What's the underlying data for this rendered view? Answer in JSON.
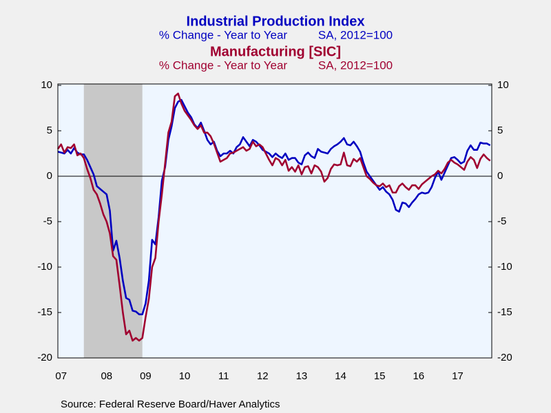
{
  "chart_data": {
    "type": "line",
    "source": "Source:  Federal Reserve Board/Haver Analytics",
    "categories": [
      null,
      "07",
      null,
      null,
      null,
      null,
      null,
      null,
      null,
      null,
      null,
      null,
      null,
      null,
      null,
      "08",
      null,
      null,
      null,
      null,
      null,
      null,
      null,
      null,
      null,
      null,
      null,
      "09",
      null,
      null,
      null,
      null,
      null,
      null,
      null,
      null,
      null,
      null,
      null,
      "10",
      null,
      null,
      null,
      null,
      null,
      null,
      null,
      null,
      null,
      null,
      null,
      "11",
      null,
      null,
      null,
      null,
      null,
      null,
      null,
      null,
      null,
      null,
      null,
      "12",
      null,
      null,
      null,
      null,
      null,
      null,
      null,
      null,
      null,
      null,
      null,
      "13",
      null,
      null,
      null,
      null,
      null,
      null,
      null,
      null,
      null,
      null,
      null,
      "14",
      null,
      null,
      null,
      null,
      null,
      null,
      null,
      null,
      null,
      null,
      null,
      "15",
      null,
      null,
      null,
      null,
      null,
      null,
      null,
      null,
      null,
      null,
      null,
      "16",
      null,
      null,
      null,
      null,
      null,
      null,
      null,
      null,
      null,
      null,
      null,
      "17",
      null,
      null,
      null,
      null,
      null,
      null,
      null,
      null,
      null,
      null
    ],
    "shaded_range": [
      8,
      26
    ],
    "ylim": [
      -20,
      10
    ],
    "yticks": [
      -20,
      -15,
      -10,
      -5,
      0,
      5,
      10
    ],
    "zero_line": true,
    "series": [
      {
        "name": "Industrial Production Index",
        "notes": [
          "% Change - Year to Year",
          "SA, 2012=100"
        ],
        "color": "#0000c0",
        "values": [
          2.7,
          2.6,
          2.5,
          2.9,
          2.5,
          3.1,
          2.6,
          2.4,
          2.4,
          1.8,
          1.0,
          0.2,
          -1.1,
          -1.4,
          -1.7,
          -2.0,
          -3.8,
          -8.2,
          -7.1,
          -9.0,
          -11.5,
          -13.4,
          -13.6,
          -14.8,
          -14.9,
          -15.2,
          -15.2,
          -14.0,
          -11.5,
          -7.0,
          -7.5,
          -4.5,
          -0.5,
          1.0,
          4.0,
          5.5,
          7.5,
          8.2,
          8.4,
          7.7,
          7.0,
          6.5,
          5.7,
          5.3,
          5.9,
          5.0,
          4.0,
          3.5,
          3.8,
          2.8,
          2.2,
          2.5,
          2.5,
          2.8,
          2.5,
          3.2,
          3.5,
          4.3,
          3.8,
          3.3,
          4.0,
          3.8,
          3.4,
          2.9,
          2.7,
          2.5,
          2.1,
          2.5,
          2.2,
          2.0,
          2.5,
          1.8,
          2.0,
          2.0,
          1.5,
          1.3,
          2.3,
          2.6,
          2.2,
          2.0,
          3.0,
          2.7,
          2.6,
          2.5,
          3.0,
          3.3,
          3.5,
          3.8,
          4.2,
          3.5,
          3.4,
          3.8,
          3.3,
          2.7,
          1.5,
          0.5,
          0.0,
          -0.5,
          -1.0,
          -1.5,
          -1.2,
          -1.7,
          -2.0,
          -2.6,
          -3.7,
          -3.9,
          -2.9,
          -3.0,
          -3.4,
          -2.9,
          -2.5,
          -2.0,
          -1.8,
          -1.9,
          -1.8,
          -1.2,
          -0.2,
          0.5,
          -0.4,
          0.4,
          1.2,
          2.0,
          2.1,
          1.8,
          1.4,
          1.6,
          2.8,
          3.4,
          2.9,
          2.9,
          3.7,
          3.6,
          3.6,
          3.4
        ]
      },
      {
        "name": "Manufacturing [SIC]",
        "notes": [
          "% Change - Year to Year",
          "SA, 2012=100"
        ],
        "color": "#a00030",
        "values": [
          3.0,
          3.5,
          2.6,
          3.2,
          3.1,
          3.5,
          2.3,
          2.5,
          2.0,
          0.8,
          -0.2,
          -1.5,
          -2.0,
          -3.0,
          -4.2,
          -5.0,
          -6.3,
          -8.8,
          -9.2,
          -12.0,
          -15.0,
          -17.4,
          -17.0,
          -18.1,
          -17.8,
          -18.1,
          -17.8,
          -15.5,
          -13.5,
          -10.0,
          -9.0,
          -5.0,
          -2.0,
          1.4,
          4.8,
          6.0,
          8.8,
          9.1,
          8.0,
          7.2,
          6.7,
          6.2,
          5.6,
          5.2,
          5.6,
          4.8,
          4.8,
          4.4,
          3.6,
          2.6,
          1.6,
          1.8,
          2.0,
          2.5,
          2.6,
          2.8,
          3.0,
          3.2,
          2.8,
          3.0,
          3.8,
          3.3,
          3.5,
          3.2,
          2.5,
          1.8,
          1.2,
          2.0,
          1.8,
          1.2,
          1.8,
          0.6,
          1.0,
          0.5,
          1.2,
          0.2,
          1.0,
          1.1,
          0.3,
          1.2,
          1.0,
          0.5,
          -0.6,
          -0.2,
          0.8,
          1.3,
          1.2,
          1.3,
          2.6,
          1.2,
          1.1,
          1.9,
          1.6,
          2.0,
          1.0,
          0.0,
          -0.3,
          -0.7,
          -1.0,
          -1.1,
          -0.8,
          -1.2,
          -1.0,
          -1.8,
          -1.8,
          -1.1,
          -0.8,
          -1.2,
          -1.5,
          -1.0,
          -1.0,
          -1.4,
          -0.9,
          -0.6,
          -0.3,
          0.0,
          0.2,
          0.6,
          0.3,
          0.8,
          1.5,
          1.8,
          1.5,
          1.3,
          1.0,
          0.7,
          1.6,
          2.1,
          1.8,
          0.9,
          1.9,
          2.4,
          2.0,
          1.7
        ]
      }
    ]
  }
}
